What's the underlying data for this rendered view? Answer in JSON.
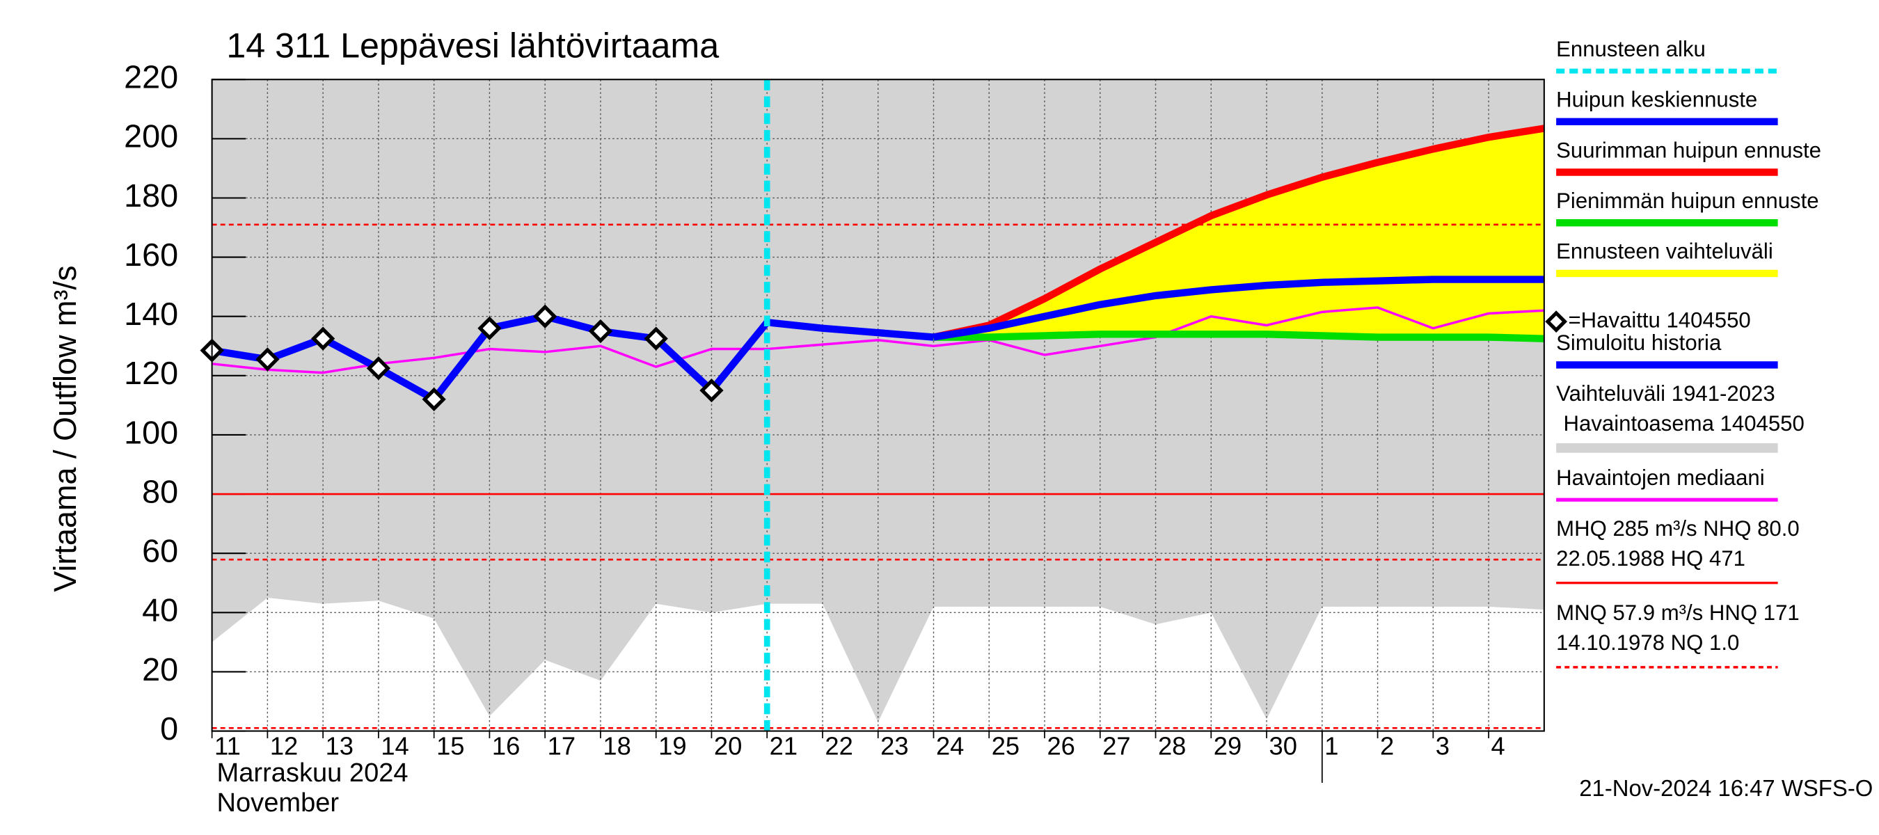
{
  "chart_data": {
    "type": "line",
    "title": "14 311 Leppävesi lähtövirtaama",
    "y_label": "Virtaama / Outflow    m³/s",
    "month_label": "Marraskuu 2024",
    "month_label_en": "November",
    "timestamp": "21-Nov-2024 16:47 WSFS-O",
    "categories": [
      "11",
      "12",
      "13",
      "14",
      "15",
      "16",
      "17",
      "18",
      "19",
      "20",
      "21",
      "22",
      "23",
      "24",
      "25",
      "26",
      "27",
      "28",
      "29",
      "30",
      "1",
      "2",
      "3",
      "4",
      null
    ],
    "ylim": [
      0,
      220
    ],
    "yticks": [
      0,
      20,
      40,
      60,
      80,
      100,
      120,
      140,
      160,
      180,
      200,
      220
    ],
    "grid": true,
    "series": [
      {
        "name": "Ennusteen alku",
        "color": "#00e5ee",
        "style": "forecast-start",
        "at": "21"
      },
      {
        "name": "Huipun keskiennuste",
        "color": "#0000ff",
        "style": "forecast-mean",
        "values": [
          null,
          null,
          null,
          null,
          null,
          null,
          null,
          null,
          null,
          null,
          null,
          null,
          null,
          133,
          136,
          140,
          144,
          147,
          149,
          150.5,
          151.5,
          152,
          152.5,
          152.5,
          152.5
        ]
      },
      {
        "name": "Suurimman huipun ennuste",
        "color": "#ff0000",
        "style": "forecast-max",
        "values": [
          null,
          null,
          null,
          null,
          null,
          null,
          null,
          null,
          null,
          null,
          null,
          null,
          null,
          133,
          137,
          146,
          156,
          165,
          174,
          181,
          187,
          192,
          196.5,
          200.5,
          203.5
        ]
      },
      {
        "name": "Pienimmän huipun ennuste",
        "color": "#00dd00",
        "style": "forecast-min",
        "values": [
          null,
          null,
          null,
          null,
          null,
          null,
          null,
          null,
          null,
          null,
          null,
          null,
          null,
          133,
          133,
          133.5,
          134,
          134,
          134,
          134,
          133.5,
          133,
          133,
          133,
          132.5
        ]
      },
      {
        "name": "Ennusteen vaihteluväli",
        "color": "#ffff00",
        "style": "forecast-range"
      },
      {
        "name": "=Havaittu 1404550",
        "color": "#000000",
        "style": "observed",
        "values": [
          128.5,
          125.5,
          132.5,
          122.5,
          112,
          136,
          140,
          135,
          132.5,
          115,
          null,
          null,
          null,
          null,
          null,
          null,
          null,
          null,
          null,
          null,
          null,
          null,
          null,
          null,
          null
        ]
      },
      {
        "name": "Simuloitu historia",
        "color": "#0000ff",
        "style": "simulated",
        "values": [
          128.5,
          125.5,
          132.5,
          122.5,
          112,
          136,
          140,
          135,
          132.5,
          115,
          138,
          136,
          134.5,
          133,
          null,
          null,
          null,
          null,
          null,
          null,
          null,
          null,
          null,
          null,
          null
        ]
      },
      {
        "name": "Vaihteluväli 1941-2023",
        "subname": "Havaintoasema 1404550",
        "color": "#d3d3d3",
        "style": "range",
        "upper": [
          220,
          220,
          220,
          220,
          220,
          220,
          220,
          220,
          220,
          220,
          220,
          220,
          220,
          220,
          220,
          220,
          220,
          220,
          220,
          220,
          220,
          220,
          220,
          220,
          220
        ],
        "lower": [
          30,
          45,
          43,
          44,
          38,
          5,
          24,
          17,
          43,
          40,
          43,
          43,
          3,
          42,
          42,
          42,
          42,
          36,
          40,
          4,
          42,
          42,
          42,
          42,
          41
        ]
      },
      {
        "name": "Havaintojen mediaani",
        "color": "#ff00ff",
        "style": "median",
        "values": [
          124,
          122,
          121,
          124,
          126,
          129,
          128,
          130,
          123,
          129,
          129,
          130.5,
          132,
          130,
          132,
          127,
          130,
          133,
          140,
          137,
          141.5,
          143,
          136,
          141,
          142
        ]
      },
      {
        "name": "MHQ  285 m³/s NHQ 80.0",
        "subname": "22.05.1988 HQ  471",
        "color": "#ff0000",
        "style": "level-solid",
        "levels": [
          80
        ]
      },
      {
        "name": "MNQ 57.9 m³/s HNQ  171",
        "subname": "14.10.1978 NQ  1.0",
        "color": "#ff0000",
        "style": "level-dashed",
        "levels": [
          171,
          57.9,
          1.0
        ]
      }
    ]
  }
}
